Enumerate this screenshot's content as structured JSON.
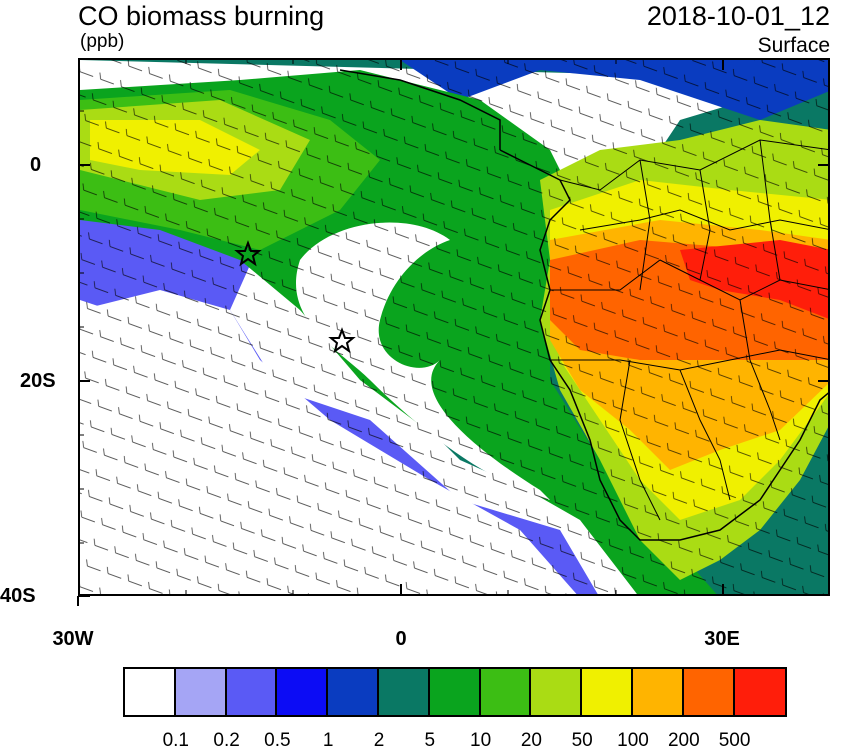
{
  "title": "CO biomass burning",
  "units": "(ppb)",
  "valid_time": "2018-10-01_12",
  "level": "Surface",
  "axes": {
    "y_labels": [
      "0",
      "20S",
      "40S"
    ],
    "x_labels": [
      "30W",
      "0",
      "30E"
    ]
  },
  "colorbar": {
    "colors": [
      "#ffffff",
      "#a5a5f5",
      "#5a5af5",
      "#0c0cf5",
      "#0a3cc0",
      "#0a7864",
      "#0aa41e",
      "#3cbe14",
      "#aadc14",
      "#f0f000",
      "#ffb400",
      "#ff6400",
      "#ff1e0a"
    ],
    "labels": [
      "0.1",
      "0.2",
      "0.5",
      "1",
      "2",
      "5",
      "10",
      "20",
      "50",
      "100",
      "200",
      "500"
    ]
  },
  "markers": [
    {
      "name": "star-marker-north"
    },
    {
      "name": "star-marker-south"
    }
  ]
}
